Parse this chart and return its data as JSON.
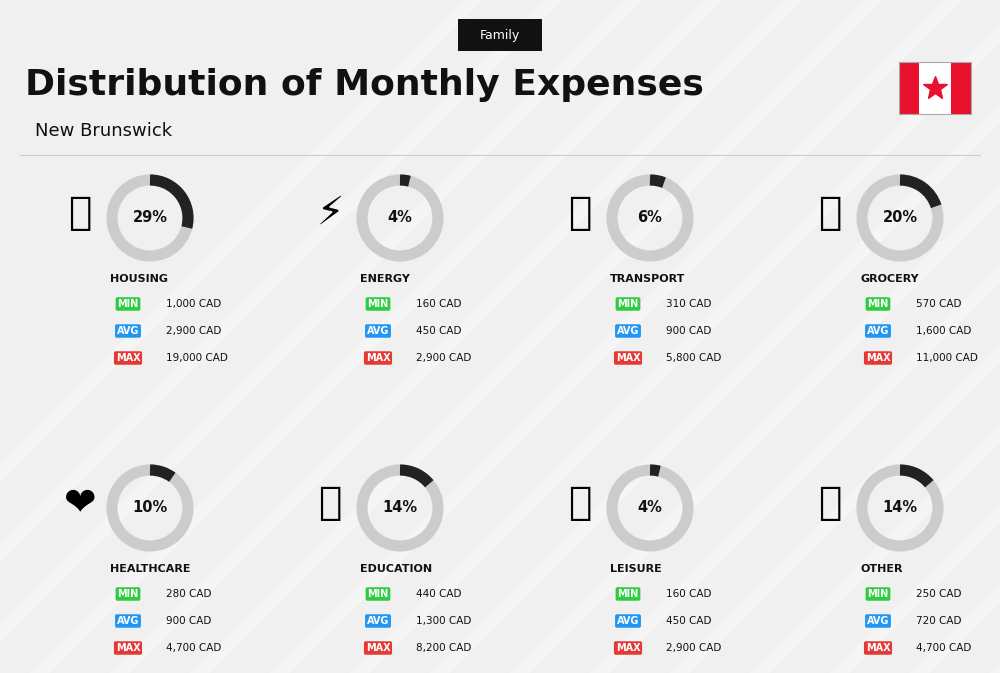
{
  "title": "Distribution of Monthly Expenses",
  "subtitle": "New Brunswick",
  "family_label": "Family",
  "bg_color": "#f0f0f0",
  "categories": [
    {
      "name": "HOUSING",
      "pct": 29,
      "min_val": "1,000 CAD",
      "avg_val": "2,900 CAD",
      "max_val": "19,000 CAD",
      "row": 0,
      "col": 0,
      "icon_color": "#1a6eb5"
    },
    {
      "name": "ENERGY",
      "pct": 4,
      "min_val": "160 CAD",
      "avg_val": "450 CAD",
      "max_val": "2,900 CAD",
      "row": 0,
      "col": 1,
      "icon_color": "#f5a623"
    },
    {
      "name": "TRANSPORT",
      "pct": 6,
      "min_val": "310 CAD",
      "avg_val": "900 CAD",
      "max_val": "5,800 CAD",
      "row": 0,
      "col": 2,
      "icon_color": "#26a69a"
    },
    {
      "name": "GROCERY",
      "pct": 20,
      "min_val": "570 CAD",
      "avg_val": "1,600 CAD",
      "max_val": "11,000 CAD",
      "row": 0,
      "col": 3,
      "icon_color": "#f5a623"
    },
    {
      "name": "HEALTHCARE",
      "pct": 10,
      "min_val": "280 CAD",
      "avg_val": "900 CAD",
      "max_val": "4,700 CAD",
      "row": 1,
      "col": 0,
      "icon_color": "#e53935"
    },
    {
      "name": "EDUCATION",
      "pct": 14,
      "min_val": "440 CAD",
      "avg_val": "1,300 CAD",
      "max_val": "8,200 CAD",
      "row": 1,
      "col": 1,
      "icon_color": "#43a047"
    },
    {
      "name": "LEISURE",
      "pct": 4,
      "min_val": "160 CAD",
      "avg_val": "450 CAD",
      "max_val": "2,900 CAD",
      "row": 1,
      "col": 2,
      "icon_color": "#f5a623"
    },
    {
      "name": "OTHER",
      "pct": 14,
      "min_val": "250 CAD",
      "avg_val": "720 CAD",
      "max_val": "4,700 CAD",
      "row": 1,
      "col": 3,
      "icon_color": "#8d6e63"
    }
  ],
  "min_color": "#2ecc40",
  "avg_color": "#2196f3",
  "max_color": "#e53935",
  "label_color_text": "#ffffff",
  "ring_filled_color": "#222222",
  "ring_empty_color": "#cccccc",
  "ring_linewidth": 8
}
